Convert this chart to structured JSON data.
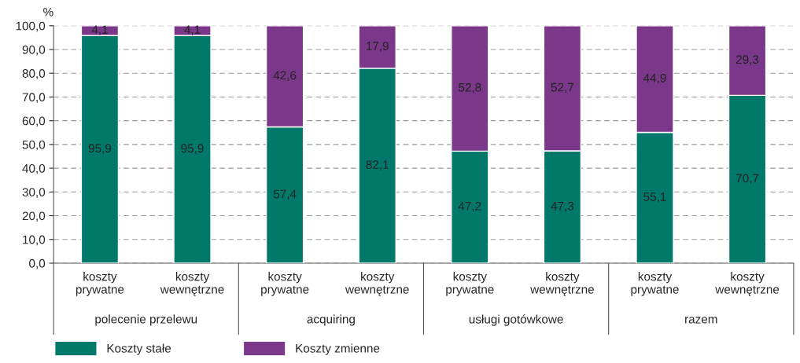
{
  "chart_data": {
    "type": "bar",
    "stacked": true,
    "ylabel": "%",
    "categories": [
      "koszty prywatne",
      "koszty wewnętrzne",
      "koszty prywatne",
      "koszty wewnętrzne",
      "koszty prywatne",
      "koszty wewnętrzne",
      "koszty prywatne",
      "koszty wewnętrzne"
    ],
    "series": [
      {
        "name": "Koszty stałe",
        "color": "#00796b",
        "values": [
          95.9,
          95.9,
          57.4,
          82.1,
          47.2,
          47.3,
          55.1,
          70.7
        ],
        "value_labels": [
          "95,9",
          "95,9",
          "57,4",
          "82,1",
          "47,2",
          "47,3",
          "55,1",
          "70,7"
        ]
      },
      {
        "name": "Koszty zmienne",
        "color": "#7b378a",
        "values": [
          4.1,
          4.1,
          42.6,
          17.9,
          52.8,
          52.7,
          44.9,
          29.3
        ],
        "value_labels": [
          "4,1",
          "4,1",
          "42,6",
          "17,9",
          "52,8",
          "52,7",
          "44,9",
          "29,3"
        ]
      }
    ],
    "annotations": [
      "polecenie przelewu",
      "acquiring",
      "usługi gotówkowe",
      "razem"
    ],
    "ylim": [
      0,
      100
    ],
    "yticks": [
      {
        "value": 0,
        "label": "0,0"
      },
      {
        "value": 10,
        "label": "10,0"
      },
      {
        "value": 20,
        "label": "20,0"
      },
      {
        "value": 30,
        "label": "30,0"
      },
      {
        "value": 40,
        "label": "40,0"
      },
      {
        "value": 50,
        "label": "50,0"
      },
      {
        "value": 60,
        "label": "60,0"
      },
      {
        "value": 70,
        "label": "70,0"
      },
      {
        "value": 80,
        "label": "80,0"
      },
      {
        "value": 90,
        "label": "90,0"
      },
      {
        "value": 100,
        "label": "100,0"
      }
    ],
    "grid": "y",
    "legend": "bottom left"
  }
}
